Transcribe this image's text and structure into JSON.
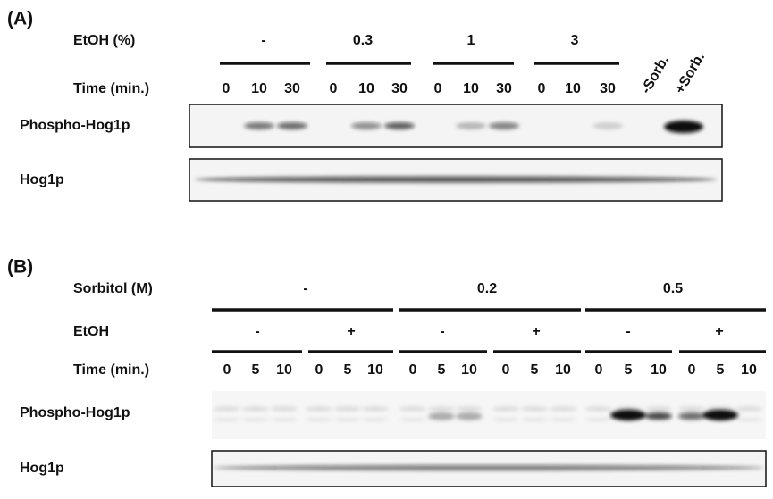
{
  "panel_a": {
    "label": "(A)",
    "treatment": {
      "label": "EtOH (%)",
      "groups": [
        "-",
        "0.3",
        "1",
        "3"
      ]
    },
    "time": {
      "label": "Time (min.)",
      "lanes": [
        "0",
        "10",
        "30",
        "0",
        "10",
        "30",
        "0",
        "10",
        "30",
        "0",
        "10",
        "30"
      ]
    },
    "controls": [
      "-Sorb.",
      "+Sorb."
    ],
    "blots": [
      "Phospho-Hog1p",
      "Hog1p"
    ]
  },
  "panel_b": {
    "label": "(B)",
    "treatment": {
      "label": "Sorbitol (M)",
      "groups": [
        "-",
        "0.2",
        "0.5"
      ]
    },
    "ethanol": {
      "label": "EtOH",
      "groups": [
        "-",
        "+",
        "-",
        "+",
        "-",
        "+"
      ]
    },
    "time": {
      "label": "Time (min.)",
      "lanes": [
        "0",
        "5",
        "10",
        "0",
        "5",
        "10",
        "0",
        "5",
        "10",
        "0",
        "5",
        "10",
        "0",
        "5",
        "10",
        "0",
        "5",
        "10"
      ]
    },
    "blots": [
      "Phospho-Hog1p",
      "Hog1p"
    ]
  }
}
